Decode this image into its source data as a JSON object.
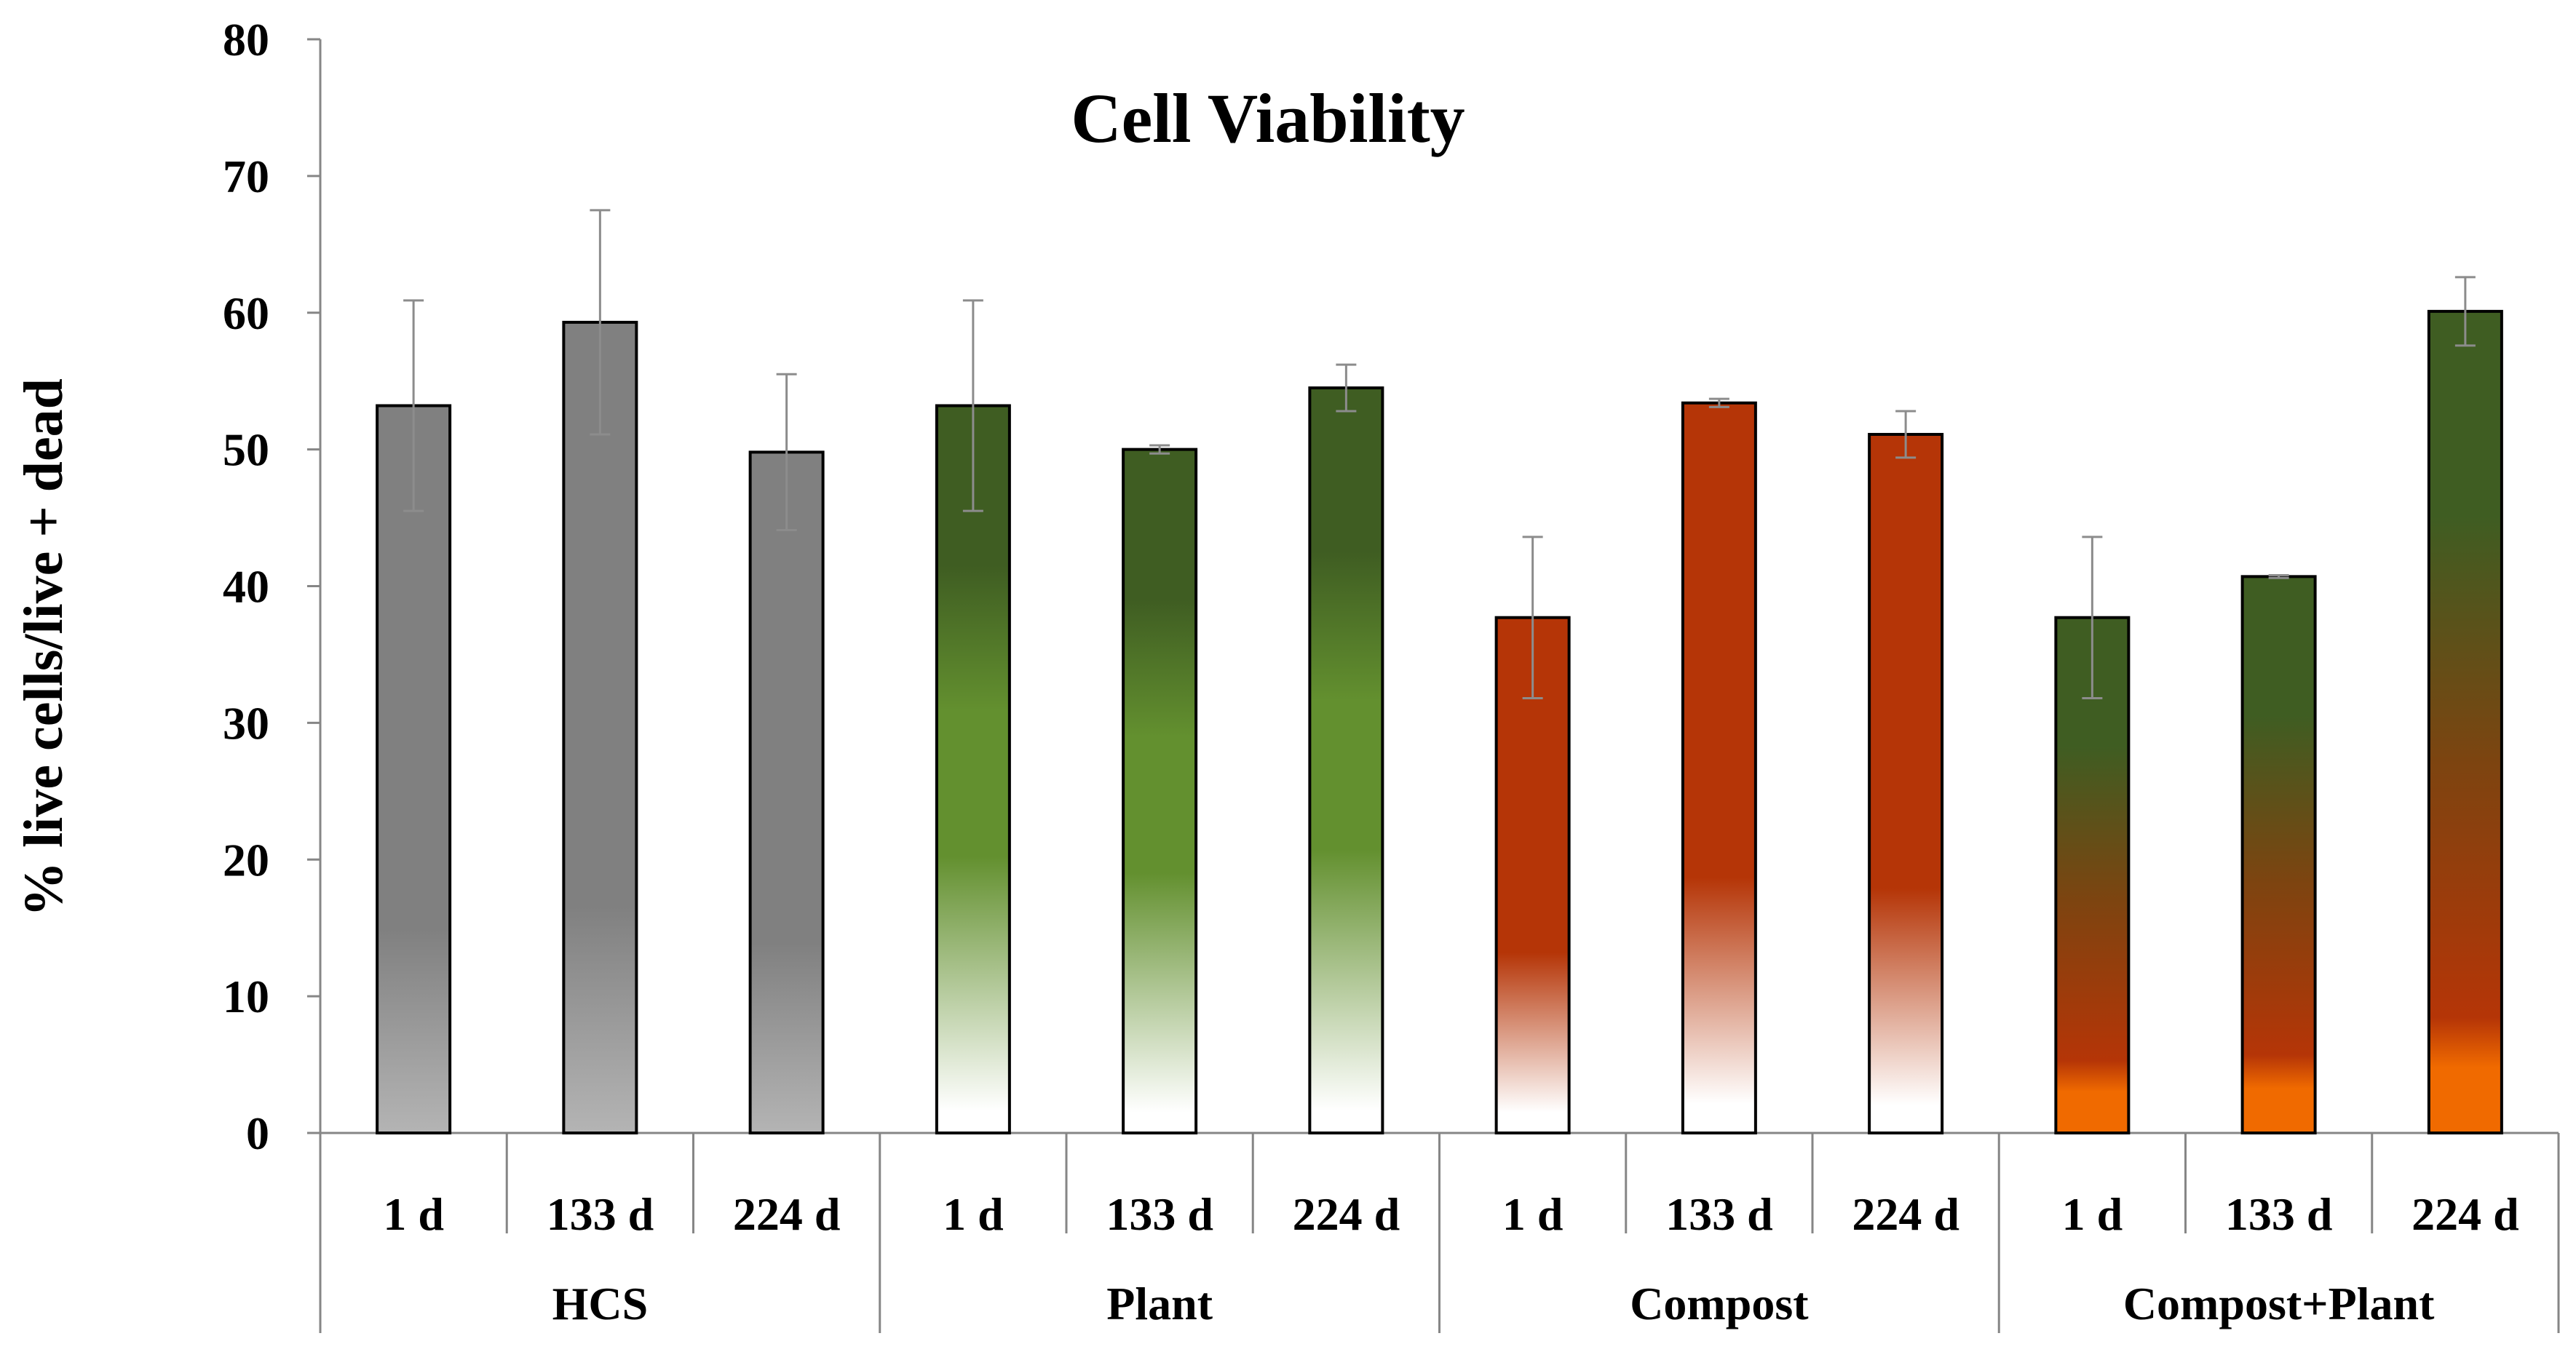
{
  "chart_data": {
    "type": "bar",
    "title": "Cell Viability",
    "xlabel": "",
    "ylabel": "% live cells/live + dead",
    "ylim": [
      0,
      80
    ],
    "yticks": [
      0,
      10,
      20,
      30,
      40,
      50,
      60,
      70,
      80
    ],
    "grid": false,
    "legend": "none",
    "groups": [
      {
        "name": "HCS",
        "style": "gray",
        "bars": [
          {
            "label": "1 d",
            "value": 53.2,
            "error": 7.7
          },
          {
            "label": "133 d",
            "value": 59.3,
            "error": 8.2
          },
          {
            "label": "224 d",
            "value": 49.8,
            "error": 5.7
          }
        ]
      },
      {
        "name": "Plant",
        "style": "green",
        "bars": [
          {
            "label": "1 d",
            "value": 53.2,
            "error": 7.7
          },
          {
            "label": "133 d",
            "value": 50.0,
            "error": 0.3
          },
          {
            "label": "224 d",
            "value": 54.5,
            "error": 1.7
          }
        ]
      },
      {
        "name": "Compost",
        "style": "rust",
        "bars": [
          {
            "label": "1 d",
            "value": 37.7,
            "error": 5.9
          },
          {
            "label": "133 d",
            "value": 53.4,
            "error": 0.3
          },
          {
            "label": "224 d",
            "value": 51.1,
            "error": 1.7
          }
        ]
      },
      {
        "name": "Compost+Plant",
        "style": "mixed",
        "bars": [
          {
            "label": "1 d",
            "value": 37.7,
            "error": 5.9
          },
          {
            "label": "133 d",
            "value": 40.7,
            "error": 0.1
          },
          {
            "label": "224 d",
            "value": 60.1,
            "error": 2.5
          }
        ]
      }
    ]
  },
  "colors": {
    "axis": "#868686",
    "error_bar": "#8c8c8c",
    "bar_outline": "#000000",
    "gray_top": "#808080",
    "gray_bottom": "#b4b4b4",
    "green_top": "#3f5d22",
    "green_mid": "#63902f",
    "rust": "#b53507",
    "orange": "#f06a00"
  }
}
